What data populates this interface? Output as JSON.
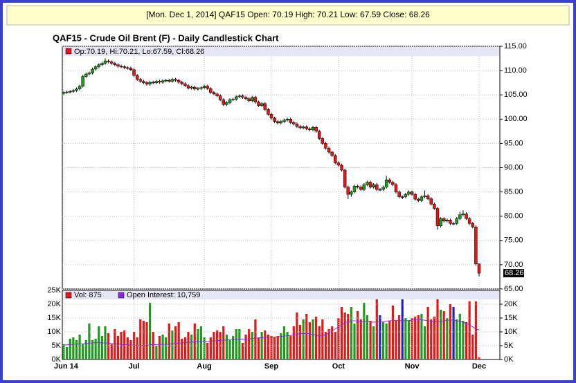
{
  "chart_data": [
    {
      "type": "candlestick",
      "header": "[Mon. Dec 1, 2014] QAF15 Open: 70.19 High: 70.21 Low: 67.59 Close: 68.26",
      "title": "QAF15 - Crude Oil Brent (F) - Daily Candlestick Chart",
      "legend": "Op:70.19, Hi:70.21, Lo:67.59, Cl:68.26",
      "up_color": "#1f9a1f",
      "down_color": "#e01818",
      "flat_color": "#2020c0",
      "ylim": [
        65,
        115
      ],
      "yticks": [
        {
          "value": 65,
          "label": "65.00"
        },
        {
          "value": 70,
          "label": "70.00"
        },
        {
          "value": 75,
          "label": "75.00"
        },
        {
          "value": 80,
          "label": "80.00"
        },
        {
          "value": 85,
          "label": "85.00"
        },
        {
          "value": 90,
          "label": "90.00"
        },
        {
          "value": 95,
          "label": "95.00"
        },
        {
          "value": 100,
          "label": "100.00"
        },
        {
          "value": 105,
          "label": "105.00"
        },
        {
          "value": 110,
          "label": "110.00"
        },
        {
          "value": 115,
          "label": "115.00"
        }
      ],
      "grid": true,
      "categories": [
        "Jun 14",
        null,
        null,
        null,
        null,
        null,
        null,
        null,
        null,
        null,
        null,
        null,
        null,
        null,
        null,
        null,
        null,
        null,
        null,
        null,
        null,
        null,
        "Jul",
        null,
        null,
        null,
        null,
        null,
        null,
        null,
        null,
        null,
        null,
        null,
        null,
        null,
        null,
        null,
        null,
        null,
        null,
        null,
        null,
        null,
        "Aug",
        null,
        null,
        null,
        null,
        null,
        null,
        null,
        null,
        null,
        null,
        null,
        null,
        null,
        null,
        null,
        null,
        null,
        null,
        null,
        null,
        "Sep",
        null,
        null,
        null,
        null,
        null,
        null,
        null,
        null,
        null,
        null,
        null,
        null,
        null,
        null,
        null,
        null,
        null,
        null,
        null,
        null,
        "Oct",
        null,
        null,
        null,
        null,
        null,
        null,
        null,
        null,
        null,
        null,
        null,
        null,
        null,
        null,
        null,
        null,
        null,
        null,
        null,
        null,
        null,
        null,
        "Nov",
        null,
        null,
        null,
        null,
        null,
        null,
        null,
        null,
        null,
        null,
        null,
        null,
        null,
        null,
        null,
        null,
        null,
        null,
        null,
        null,
        "Dec"
      ],
      "open": [
        105.3,
        105.5,
        105.6,
        105.7,
        105.9,
        106.2,
        106.8,
        108.8,
        109.3,
        109.5,
        110.3,
        110.8,
        111.2,
        111.5,
        112.0,
        111.8,
        111.5,
        111.2,
        110.9,
        110.8,
        110.6,
        110.5,
        110.2,
        109.0,
        108.2,
        107.8,
        107.5,
        107.2,
        107.6,
        107.5,
        107.8,
        107.6,
        107.9,
        108.0,
        107.8,
        108.2,
        108.0,
        107.6,
        107.3,
        106.9,
        106.4,
        106.6,
        106.2,
        106.3,
        106.5,
        106.8,
        106.3,
        105.5,
        105.2,
        104.8,
        104.0,
        103.0,
        103.4,
        104.0,
        104.1,
        104.6,
        104.8,
        104.5,
        104.2,
        103.8,
        104.5,
        103.5,
        102.8,
        103.2,
        102.0,
        101.0,
        100.2,
        99.5,
        99.2,
        99.5,
        99.8,
        100.0,
        99.3,
        99.0,
        98.5,
        98.2,
        98.4,
        98.0,
        97.8,
        98.3,
        97.5,
        96.0,
        95.0,
        94.0,
        93.2,
        92.5,
        91.0,
        90.5,
        89.5,
        86.0,
        84.5,
        85.0,
        86.2,
        86.0,
        85.5,
        86.5,
        87.0,
        86.0,
        86.5,
        85.5,
        85.5,
        86.0,
        87.5,
        87.0,
        86.5,
        85.0,
        84.0,
        84.0,
        84.5,
        85.0,
        84.5,
        83.5,
        83.2,
        84.0,
        84.2,
        83.6,
        82.5,
        81.6,
        78.0,
        79.5,
        79.0,
        79.2,
        78.5,
        78.5,
        79.5,
        80.3,
        80.5,
        79.5,
        78.5,
        77.8,
        70.19
      ],
      "high": [
        105.8,
        105.9,
        106.0,
        106.2,
        106.5,
        107.1,
        109.1,
        109.6,
        109.8,
        110.6,
        111.1,
        111.5,
        111.8,
        112.5,
        112.3,
        112.1,
        111.8,
        111.5,
        111.2,
        111.1,
        110.9,
        110.8,
        110.5,
        109.3,
        108.5,
        108.1,
        107.8,
        107.9,
        107.9,
        108.1,
        108.1,
        108.2,
        108.3,
        108.3,
        108.5,
        108.5,
        108.3,
        107.9,
        107.6,
        107.2,
        106.9,
        106.9,
        106.6,
        106.8,
        107.1,
        107.1,
        106.6,
        105.8,
        105.5,
        105.1,
        104.3,
        103.7,
        104.3,
        104.4,
        104.9,
        105.1,
        105.1,
        104.8,
        104.5,
        104.8,
        104.8,
        103.8,
        103.5,
        103.5,
        102.3,
        101.3,
        100.5,
        99.8,
        99.8,
        100.1,
        100.3,
        100.3,
        99.6,
        99.3,
        98.8,
        98.7,
        98.7,
        98.3,
        98.6,
        98.6,
        97.8,
        96.3,
        95.3,
        94.3,
        93.5,
        92.8,
        91.3,
        90.8,
        89.8,
        86.3,
        85.3,
        86.5,
        86.5,
        86.3,
        86.8,
        87.3,
        87.3,
        86.8,
        86.8,
        85.8,
        86.3,
        88.3,
        87.8,
        87.3,
        86.8,
        85.3,
        84.3,
        84.8,
        85.3,
        85.3,
        84.8,
        83.8,
        84.3,
        85.3,
        84.5,
        83.9,
        82.8,
        81.9,
        79.8,
        79.8,
        79.5,
        79.5,
        78.8,
        79.8,
        80.9,
        81.2,
        80.8,
        79.8,
        78.8,
        78.1,
        70.21
      ],
      "low": [
        105.0,
        105.2,
        105.3,
        105.4,
        105.6,
        105.9,
        106.5,
        108.5,
        109.0,
        109.2,
        110.0,
        110.5,
        110.9,
        111.2,
        111.5,
        111.2,
        110.9,
        110.6,
        110.5,
        110.3,
        110.2,
        109.9,
        108.7,
        107.9,
        107.5,
        107.2,
        106.9,
        106.9,
        107.2,
        107.2,
        107.3,
        107.3,
        107.6,
        107.5,
        107.5,
        107.7,
        107.3,
        107.0,
        106.6,
        106.1,
        106.1,
        105.9,
        105.9,
        106.0,
        106.2,
        106.0,
        105.2,
        104.9,
        104.5,
        103.7,
        102.7,
        102.7,
        103.1,
        103.7,
        103.8,
        104.3,
        104.2,
        103.9,
        103.5,
        103.5,
        103.2,
        102.5,
        102.5,
        101.7,
        100.7,
        99.9,
        99.2,
        98.9,
        98.9,
        99.2,
        99.5,
        99.0,
        98.7,
        98.2,
        97.9,
        97.9,
        97.7,
        97.5,
        97.5,
        97.2,
        95.7,
        94.7,
        93.7,
        92.9,
        92.2,
        90.7,
        90.2,
        89.2,
        85.7,
        83.5,
        84.0,
        84.7,
        85.7,
        85.2,
        85.2,
        86.2,
        85.7,
        85.7,
        85.2,
        85.2,
        85.2,
        85.7,
        86.7,
        86.2,
        84.7,
        83.7,
        83.5,
        83.7,
        84.2,
        84.2,
        83.2,
        82.9,
        82.9,
        83.7,
        83.3,
        82.2,
        81.3,
        77.2,
        77.7,
        78.7,
        78.7,
        78.2,
        78.2,
        78.2,
        79.2,
        80.0,
        79.2,
        78.2,
        77.5,
        69.8,
        67.59
      ],
      "close": [
        105.5,
        105.6,
        105.7,
        105.9,
        106.2,
        106.8,
        108.8,
        109.3,
        109.5,
        110.3,
        110.8,
        111.2,
        111.5,
        112.0,
        111.8,
        111.5,
        111.2,
        110.9,
        110.8,
        110.6,
        110.5,
        110.2,
        109.0,
        108.2,
        107.8,
        107.5,
        107.2,
        107.6,
        107.5,
        107.8,
        107.6,
        107.9,
        108.0,
        107.8,
        108.2,
        108.0,
        107.6,
        107.3,
        106.9,
        106.4,
        106.6,
        106.2,
        106.3,
        106.5,
        106.8,
        106.3,
        105.5,
        105.2,
        104.8,
        104.0,
        103.0,
        103.4,
        104.0,
        104.1,
        104.6,
        104.8,
        104.5,
        104.2,
        103.8,
        104.5,
        103.5,
        102.8,
        103.2,
        102.0,
        101.0,
        100.2,
        99.5,
        99.2,
        99.5,
        99.8,
        100.0,
        99.3,
        99.0,
        98.5,
        98.2,
        98.4,
        98.0,
        97.8,
        98.3,
        97.5,
        96.0,
        95.0,
        94.0,
        93.2,
        92.5,
        91.0,
        90.5,
        89.5,
        86.0,
        84.5,
        85.0,
        86.2,
        86.0,
        85.5,
        86.5,
        87.0,
        86.0,
        86.5,
        85.5,
        85.5,
        86.0,
        87.5,
        87.0,
        86.5,
        85.0,
        84.0,
        84.0,
        84.5,
        85.0,
        84.5,
        83.5,
        83.2,
        84.0,
        84.2,
        83.6,
        82.5,
        81.6,
        78.0,
        79.5,
        79.0,
        79.2,
        78.5,
        78.5,
        79.5,
        80.3,
        80.5,
        79.5,
        78.5,
        77.8,
        70.15,
        68.26
      ]
    },
    {
      "type": "bar",
      "ylim": [
        0,
        25000
      ],
      "yticks": [
        {
          "value": 0,
          "label": "0K"
        },
        {
          "value": 5000,
          "label": "5K"
        },
        {
          "value": 10000,
          "label": "10K"
        },
        {
          "value": 15000,
          "label": "15K"
        },
        {
          "value": 20000,
          "label": "20K"
        },
        {
          "value": 25000,
          "label": "25K"
        }
      ],
      "y2ticks": [
        {
          "value": 0,
          "label": "0K"
        },
        {
          "value": 5000,
          "label": "5K"
        },
        {
          "value": 10000,
          "label": "10K"
        },
        {
          "value": 15000,
          "label": "15K"
        },
        {
          "value": 20000,
          "label": "20K"
        }
      ],
      "series": [
        {
          "name": "Vol: 875",
          "color": "#e01818",
          "values": [
            5500,
            4500,
            7500,
            8000,
            7000,
            9000,
            5500,
            7000,
            13000,
            7000,
            7500,
            12000,
            8500,
            12000,
            9500,
            5500,
            11000,
            8500,
            10000,
            10500,
            8000,
            7000,
            10000,
            8000,
            14500,
            14000,
            13500,
            20500,
            10000,
            5000,
            8500,
            9000,
            8000,
            13000,
            10500,
            12000,
            13500,
            7500,
            8000,
            10000,
            9000,
            13000,
            11000,
            12000,
            8000,
            6000,
            8000,
            10000,
            10500,
            10000,
            12000,
            9000,
            7000,
            8500,
            11000,
            11000,
            6000,
            9000,
            11000,
            10000,
            14500,
            8000,
            10000,
            10500,
            9000,
            8500,
            8000,
            8500,
            9500,
            12000,
            10000,
            8500,
            12000,
            17000,
            12500,
            14500,
            16500,
            13500,
            14500,
            15500,
            12000,
            14500,
            10000,
            11000,
            12000,
            10000,
            15000,
            19000,
            17000,
            16500,
            19000,
            13000,
            17500,
            14500,
            20500,
            16000,
            14000,
            12000,
            22000,
            16000,
            13500,
            13000,
            14000,
            19500,
            14000,
            16000,
            22000,
            15000,
            14000,
            15000,
            15500,
            16000,
            16500,
            12000,
            19000,
            14500,
            15500,
            22000,
            18000,
            17500,
            15000,
            20000,
            19000,
            14500,
            16500,
            14000,
            13500,
            21000,
            9000,
            21000,
            875
          ]
        },
        {
          "name": "Open Interest: 10,759",
          "color": "#8a2be2",
          "values": [
            5200,
            5300,
            5400,
            5500,
            5600,
            5600,
            5700,
            5800,
            5900,
            6000,
            6100,
            6100,
            6000,
            6000,
            5900,
            5800,
            5700,
            5600,
            5500,
            5400,
            5300,
            5200,
            5200,
            5100,
            5100,
            5100,
            5200,
            5300,
            5400,
            5400,
            5400,
            5500,
            5500,
            5600,
            5700,
            5800,
            5900,
            6000,
            6100,
            6200,
            6300,
            6300,
            6400,
            6500,
            6500,
            6500,
            6600,
            6700,
            6800,
            6900,
            7000,
            7100,
            7200,
            7200,
            7300,
            7300,
            7400,
            7400,
            7500,
            7600,
            7700,
            7800,
            7900,
            8000,
            8000,
            8100,
            8100,
            8200,
            8300,
            8500,
            8600,
            8700,
            8900,
            9100,
            9300,
            9400,
            9400,
            9300,
            9000,
            8700,
            8500,
            8600,
            9000,
            9600,
            10300,
            11000,
            11800,
            12500,
            13200,
            13800,
            14000,
            14000,
            13900,
            13800,
            13700,
            13700,
            13600,
            13500,
            13600,
            13700,
            13800,
            13900,
            14000,
            14100,
            14200,
            14100,
            14000,
            14000,
            14100,
            14200,
            14400,
            14500,
            14400,
            14200,
            14000,
            13800,
            13700,
            13600,
            13800,
            14000,
            14200,
            14300,
            14200,
            14000,
            13800,
            13500,
            13000,
            12500,
            11800,
            11000,
            10759
          ]
        }
      ]
    }
  ]
}
